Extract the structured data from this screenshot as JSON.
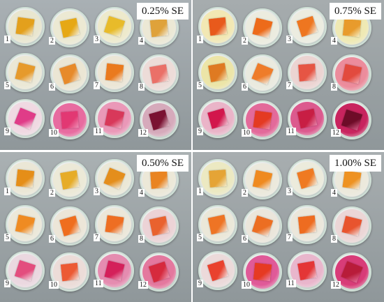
{
  "panels": [
    {
      "label": "0.25% SE",
      "background": "#a9b0b4",
      "dishes": [
        {
          "num": "1",
          "film": "#e3a01c",
          "liquid": "#e9e6cf"
        },
        {
          "num": "2",
          "film": "#e6a815",
          "liquid": "#ece9d3"
        },
        {
          "num": "3",
          "film": "#e8bb2a",
          "liquid": "#eeeacc"
        },
        {
          "num": "4",
          "film": "#dfa23a",
          "liquid": "#ece8d5"
        },
        {
          "num": "5",
          "film": "#e69a2c",
          "liquid": "#ebe8d6"
        },
        {
          "num": "6",
          "film": "#e78a2a",
          "liquid": "#ebe6d4"
        },
        {
          "num": "7",
          "film": "#ea7a1e",
          "liquid": "#ece6d6"
        },
        {
          "num": "8",
          "film": "#ea7068",
          "liquid": "#eddcd8"
        },
        {
          "num": "9",
          "film": "#e03c88",
          "liquid": "#f0d9e2"
        },
        {
          "num": "10",
          "film": "#e23873",
          "liquid": "#e86ca0"
        },
        {
          "num": "11",
          "film": "#d8385a",
          "liquid": "#ea98b8"
        },
        {
          "num": "12",
          "film": "#7a1232",
          "liquid": "#d6aabb"
        }
      ]
    },
    {
      "label": "0.75% SE",
      "background": "#a6acae",
      "dishes": [
        {
          "num": "1",
          "film": "#e85a1c",
          "liquid": "#f2e8b4"
        },
        {
          "num": "2",
          "film": "#ed6b1a",
          "liquid": "#ececdf"
        },
        {
          "num": "3",
          "film": "#ee7620",
          "liquid": "#ecece0"
        },
        {
          "num": "4",
          "film": "#e89b2c",
          "liquid": "#efe9b4"
        },
        {
          "num": "5",
          "film": "#df7a22",
          "liquid": "#ece5a8"
        },
        {
          "num": "6",
          "film": "#ee7c2a",
          "liquid": "#eaeadf"
        },
        {
          "num": "7",
          "film": "#e65544",
          "liquid": "#ecd4d2"
        },
        {
          "num": "8",
          "film": "#e24a3e",
          "liquid": "#ec8c9c"
        },
        {
          "num": "9",
          "film": "#d2164c",
          "liquid": "#eab4c8"
        },
        {
          "num": "10",
          "film": "#e43a22",
          "liquid": "#e36a9a"
        },
        {
          "num": "11",
          "film": "#c81e44",
          "liquid": "#dc5a8e"
        },
        {
          "num": "12",
          "film": "#6e0c28",
          "liquid": "#c8245e"
        }
      ]
    },
    {
      "label": "0.50% SE",
      "background": "#aab1b3",
      "dishes": [
        {
          "num": "1",
          "film": "#e58e18",
          "liquid": "#ebe7d6"
        },
        {
          "num": "2",
          "film": "#e6ac28",
          "liquid": "#ece9d7"
        },
        {
          "num": "3",
          "film": "#e48e1c",
          "liquid": "#ebe8d7"
        },
        {
          "num": "4",
          "film": "#e98422",
          "liquid": "#ece8d8"
        },
        {
          "num": "5",
          "film": "#ef8b22",
          "liquid": "#ece8d9"
        },
        {
          "num": "6",
          "film": "#ef6e1e",
          "liquid": "#ece6d8"
        },
        {
          "num": "7",
          "film": "#ee6e22",
          "liquid": "#ece7d9"
        },
        {
          "num": "8",
          "film": "#e9622e",
          "liquid": "#ecd3d6"
        },
        {
          "num": "9",
          "film": "#e34d7e",
          "liquid": "#ebd8e0"
        },
        {
          "num": "10",
          "film": "#ec5a34",
          "liquid": "#ecdcd8"
        },
        {
          "num": "11",
          "film": "#d4205a",
          "liquid": "#e58cb0"
        },
        {
          "num": "12",
          "film": "#d62a3e",
          "liquid": "#e4789e"
        }
      ]
    },
    {
      "label": "1.00% SE",
      "background": "#a8aeb0",
      "dishes": [
        {
          "num": "1",
          "film": "#e5a436",
          "liquid": "#ece9c2"
        },
        {
          "num": "2",
          "film": "#ef8a20",
          "liquid": "#ece9dc"
        },
        {
          "num": "3",
          "film": "#ef7a22",
          "liquid": "#ecebdc"
        },
        {
          "num": "4",
          "film": "#ee9222",
          "liquid": "#ece9dc"
        },
        {
          "num": "5",
          "film": "#ee7424",
          "liquid": "#ebe8d9"
        },
        {
          "num": "6",
          "film": "#ec6e22",
          "liquid": "#ebe6db"
        },
        {
          "num": "7",
          "film": "#ee6c20",
          "liquid": "#ebe7db"
        },
        {
          "num": "8",
          "film": "#e8542e",
          "liquid": "#ecd6d6"
        },
        {
          "num": "9",
          "film": "#e9422e",
          "liquid": "#ecdada"
        },
        {
          "num": "10",
          "film": "#e63a22",
          "liquid": "#e05a98"
        },
        {
          "num": "11",
          "film": "#e43636",
          "liquid": "#e9b6cc"
        },
        {
          "num": "12",
          "film": "#b81c3a",
          "liquid": "#d83c78"
        }
      ]
    }
  ]
}
